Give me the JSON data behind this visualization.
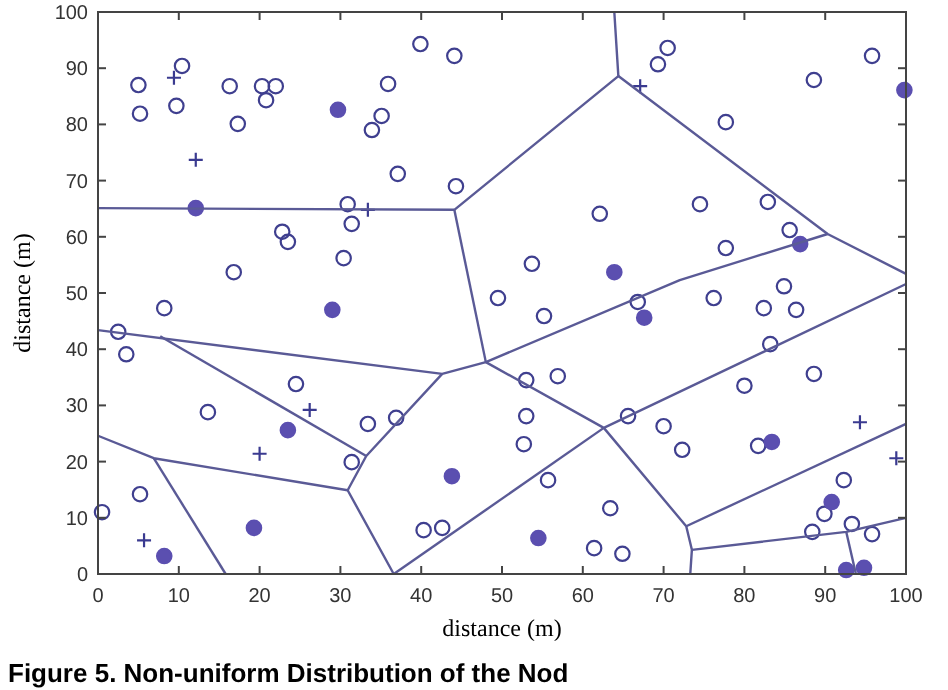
{
  "chart_data": {
    "type": "scatter",
    "xlabel": "distance (m)",
    "ylabel": "distance (m)",
    "annotations": [
      "Figure 5. Non-uniform Distribution of the Nod"
    ],
    "xlim": [
      0,
      100
    ],
    "ylim": [
      0,
      100
    ],
    "xticks": [
      0,
      10,
      20,
      30,
      40,
      50,
      60,
      70,
      80,
      90,
      100
    ],
    "yticks": [
      0,
      10,
      20,
      30,
      40,
      50,
      60,
      70,
      80,
      90,
      100
    ],
    "grid": false,
    "series": [
      {
        "marker": "circle",
        "color": "#3f3f8f",
        "x": [
          5,
          10.4,
          5.2,
          9.7,
          16.3,
          17.3,
          20.3,
          20.8,
          22,
          39.9,
          44.1,
          35.9,
          35.1,
          33.9,
          37.1,
          44.3,
          30.9,
          31.4,
          30.4,
          22.8,
          23.5,
          16.8,
          49.5,
          70.5,
          69.3,
          95.8,
          88.6,
          77.7,
          62.1,
          74.5,
          82.9,
          85.6,
          77.7,
          84.9,
          53.7,
          8.2,
          2.5,
          3.5,
          24.5,
          13.6,
          33.4,
          36.9,
          31.4,
          5.2,
          0.5,
          40.3,
          42.6,
          55.2,
          66.8,
          76.2,
          82.4,
          86.4,
          83.2,
          53,
          56.9,
          80,
          88.6,
          53,
          52.7,
          65.6,
          70,
          72.3,
          81.7,
          55.7,
          92.3,
          63.4,
          89.9,
          93.3,
          88.4,
          95.8,
          61.4,
          64.9
        ],
        "values": [
          87,
          90.4,
          81.9,
          83.3,
          86.8,
          80.1,
          86.8,
          84.3,
          86.8,
          94.3,
          92.2,
          87.2,
          81.5,
          79,
          71.2,
          69,
          65.8,
          62.3,
          56.2,
          60.9,
          59.1,
          53.7,
          49.1,
          93.6,
          90.7,
          92.2,
          87.9,
          80.4,
          64.1,
          65.8,
          66.2,
          61.2,
          58,
          51.2,
          55.2,
          47.3,
          43.1,
          39.1,
          33.8,
          28.8,
          26.7,
          27.8,
          19.9,
          14.2,
          11,
          7.8,
          8.2,
          45.9,
          48.4,
          49.1,
          47.3,
          47,
          40.9,
          34.5,
          35.2,
          33.5,
          35.6,
          28.1,
          23.1,
          28.1,
          26.3,
          22.1,
          22.8,
          16.7,
          16.7,
          11.7,
          10.7,
          8.9,
          7.5,
          7.1,
          4.6,
          3.6
        ]
      },
      {
        "marker": "circle",
        "color": "#5b4fb0",
        "x": [
          29.7,
          12.1,
          99.8,
          63.9,
          86.9,
          29,
          23.5,
          43.8,
          19.3,
          8.2,
          67.6,
          83.4,
          90.8,
          54.5,
          92.6,
          94.8
        ],
        "values": [
          82.6,
          65.1,
          86.1,
          53.7,
          58.7,
          47,
          25.6,
          17.4,
          8.2,
          3.2,
          45.6,
          23.5,
          12.8,
          6.4,
          0.7,
          1.1
        ]
      },
      {
        "marker": "cross",
        "color": "#3a3a90",
        "x": [
          9.4,
          12.1,
          33.4,
          67.1,
          26.2,
          20,
          5.7,
          94.3,
          98.8
        ],
        "values": [
          88.3,
          73.7,
          64.8,
          86.8,
          29.2,
          21.4,
          6,
          27,
          20.6
        ]
      },
      {
        "type": "line",
        "color": "#5a5a96",
        "x": [
          0,
          44.1
        ],
        "values": [
          65.1,
          64.8
        ]
      },
      {
        "type": "line",
        "color": "#5a5a96",
        "x": [
          44.1,
          48
        ],
        "values": [
          64.8,
          37.7
        ]
      },
      {
        "type": "line",
        "color": "#5a5a96",
        "x": [
          44.1,
          64.4,
          63.9
        ],
        "values": [
          64.8,
          88.6,
          100
        ]
      },
      {
        "type": "line",
        "color": "#5a5a96",
        "x": [
          64.4,
          90.3,
          100
        ],
        "values": [
          88.6,
          60.5,
          53.4
        ]
      },
      {
        "type": "line",
        "color": "#5a5a96",
        "x": [
          48,
          62.6,
          100
        ],
        "values": [
          37.7,
          26,
          51.6
        ]
      },
      {
        "type": "line",
        "color": "#5a5a96",
        "x": [
          62.6,
          72.8,
          73.5,
          73.3
        ],
        "values": [
          26,
          8.5,
          4.3,
          0
        ]
      },
      {
        "type": "line",
        "color": "#5a5a96",
        "x": [
          72.8,
          100
        ],
        "values": [
          8.5,
          26.7
        ]
      },
      {
        "type": "line",
        "color": "#5a5a96",
        "x": [
          73.5,
          92.6,
          100
        ],
        "values": [
          4.3,
          7.5,
          10
        ]
      },
      {
        "type": "line",
        "color": "#5a5a96",
        "x": [
          92.6,
          93.8
        ],
        "values": [
          7.5,
          0
        ]
      },
      {
        "type": "line",
        "color": "#5a5a96",
        "x": [
          62.6,
          36.6
        ],
        "values": [
          26,
          0
        ]
      },
      {
        "type": "line",
        "color": "#5a5a96",
        "x": [
          0,
          42.6,
          48,
          72,
          90.3
        ],
        "values": [
          43.4,
          35.6,
          37.7,
          52.3,
          60.5
        ]
      },
      {
        "type": "line",
        "color": "#5a5a96",
        "x": [
          42.6,
          33.2,
          30.9,
          36.6
        ],
        "values": [
          35.6,
          21,
          14.9,
          0
        ]
      },
      {
        "type": "line",
        "color": "#5a5a96",
        "x": [
          7.7,
          33.2
        ],
        "values": [
          42.3,
          21
        ]
      },
      {
        "type": "line",
        "color": "#5a5a96",
        "x": [
          0,
          6.9,
          30.9
        ],
        "values": [
          24.6,
          20.6,
          14.9
        ]
      },
      {
        "type": "line",
        "color": "#5a5a96",
        "x": [
          6.9,
          15.8
        ],
        "values": [
          20.6,
          0
        ]
      }
    ]
  }
}
